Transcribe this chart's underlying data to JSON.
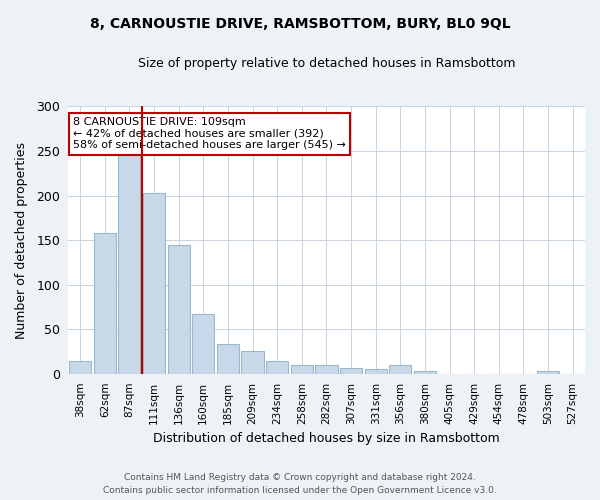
{
  "title1": "8, CARNOUSTIE DRIVE, RAMSBOTTOM, BURY, BL0 9QL",
  "title2": "Size of property relative to detached houses in Ramsbottom",
  "xlabel": "Distribution of detached houses by size in Ramsbottom",
  "ylabel": "Number of detached properties",
  "footnote": "Contains HM Land Registry data © Crown copyright and database right 2024.\nContains public sector information licensed under the Open Government Licence v3.0.",
  "categories": [
    "38sqm",
    "62sqm",
    "87sqm",
    "111sqm",
    "136sqm",
    "160sqm",
    "185sqm",
    "209sqm",
    "234sqm",
    "258sqm",
    "282sqm",
    "307sqm",
    "331sqm",
    "356sqm",
    "380sqm",
    "405sqm",
    "429sqm",
    "454sqm",
    "478sqm",
    "503sqm",
    "527sqm"
  ],
  "values": [
    15,
    158,
    250,
    203,
    145,
    67,
    34,
    26,
    15,
    10,
    10,
    7,
    5,
    10,
    3,
    0,
    0,
    0,
    0,
    3,
    0
  ],
  "bar_color": "#c8d8e8",
  "bar_edge_color": "#99b8cc",
  "vline_x_index": 2.5,
  "vline_color": "#bb0000",
  "annotation_text": "8 CARNOUSTIE DRIVE: 109sqm\n← 42% of detached houses are smaller (392)\n58% of semi-detached houses are larger (545) →",
  "annotation_box_color": "white",
  "annotation_box_edge": "#bb0000",
  "ylim": [
    0,
    300
  ],
  "yticks": [
    0,
    50,
    100,
    150,
    200,
    250,
    300
  ],
  "background_color": "#edf2f7",
  "plot_bg_color": "#ffffff",
  "grid_color": "#c8d4e0"
}
